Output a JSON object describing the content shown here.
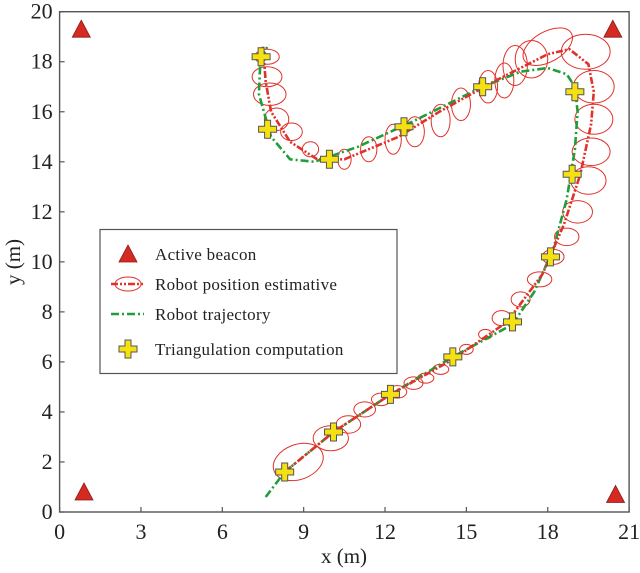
{
  "chart_data": {
    "type": "scatter",
    "xlabel": "x (m)",
    "ylabel": "y (m)",
    "xlim": [
      0,
      21
    ],
    "ylim": [
      0,
      20
    ],
    "xticks": [
      0,
      3,
      6,
      9,
      12,
      15,
      18,
      21
    ],
    "yticks": [
      0,
      2,
      4,
      6,
      8,
      10,
      12,
      14,
      16,
      18,
      20
    ],
    "grid": false,
    "legend_position": "center-left",
    "colors": {
      "beacon": "#d42a22",
      "estimate": "#e0312a",
      "trajectory": "#1f9e3a",
      "triangulation": "#f5e012"
    },
    "legend": [
      {
        "key": "beacon",
        "label": "Active beacon"
      },
      {
        "key": "estimate",
        "label": "Robot position estimative"
      },
      {
        "key": "trajectory",
        "label": "Robot trajectory"
      },
      {
        "key": "triangulation",
        "label": "Triangulation computation"
      }
    ],
    "beacons": [
      [
        0.8,
        19.3
      ],
      [
        20.4,
        19.3
      ],
      [
        0.9,
        0.8
      ],
      [
        20.5,
        0.7
      ]
    ],
    "trajectory": [
      [
        7.6,
        0.6
      ],
      [
        8.3,
        1.6
      ],
      [
        10.1,
        3.2
      ],
      [
        12.2,
        4.7
      ],
      [
        14.5,
        6.2
      ],
      [
        16.7,
        7.5
      ],
      [
        17.5,
        8.8
      ],
      [
        18.2,
        10.5
      ],
      [
        18.7,
        12.5
      ],
      [
        19.0,
        14.5
      ],
      [
        19.1,
        16.0
      ],
      [
        19.0,
        17.0
      ],
      [
        18.7,
        17.5
      ],
      [
        18.0,
        17.75
      ],
      [
        17.0,
        17.6
      ],
      [
        15.6,
        17.0
      ],
      [
        13.0,
        15.6
      ],
      [
        11.0,
        14.6
      ],
      [
        9.4,
        14.0
      ],
      [
        8.5,
        14.1
      ],
      [
        7.8,
        15.0
      ],
      [
        7.35,
        16.7
      ],
      [
        7.4,
        18.0
      ],
      [
        7.7,
        18.7
      ]
    ],
    "estimate": [
      [
        8.3,
        1.6
      ],
      [
        10.1,
        3.2
      ],
      [
        12.2,
        4.7
      ],
      [
        14.5,
        6.1
      ],
      [
        16.5,
        7.6
      ],
      [
        17.8,
        9.5
      ],
      [
        18.6,
        11.5
      ],
      [
        19.2,
        13.5
      ],
      [
        19.6,
        15.5
      ],
      [
        19.7,
        16.8
      ],
      [
        19.5,
        17.9
      ],
      [
        18.8,
        18.5
      ],
      [
        18.0,
        18.3
      ],
      [
        16.0,
        17.2
      ],
      [
        14.0,
        16.0
      ],
      [
        12.5,
        15.0
      ],
      [
        10.5,
        14.1
      ],
      [
        9.5,
        14.1
      ],
      [
        8.5,
        14.8
      ],
      [
        7.8,
        16.0
      ],
      [
        7.6,
        17.2
      ],
      [
        7.5,
        18.6
      ]
    ],
    "uncertainty_ellipses": [
      {
        "cx": 8.8,
        "cy": 2.0,
        "rx": 0.95,
        "ry": 0.7,
        "angle": 20
      },
      {
        "cx": 10.0,
        "cy": 2.95,
        "rx": 0.65,
        "ry": 0.5,
        "angle": 0
      },
      {
        "cx": 10.65,
        "cy": 3.5,
        "rx": 0.45,
        "ry": 0.35,
        "angle": 0
      },
      {
        "cx": 11.25,
        "cy": 4.1,
        "rx": 0.4,
        "ry": 0.3,
        "angle": 0
      },
      {
        "cx": 11.85,
        "cy": 4.5,
        "rx": 0.35,
        "ry": 0.25,
        "angle": 0
      },
      {
        "cx": 12.45,
        "cy": 4.8,
        "rx": 0.35,
        "ry": 0.25,
        "angle": 0
      },
      {
        "cx": 13.05,
        "cy": 5.15,
        "rx": 0.35,
        "ry": 0.25,
        "angle": 0
      },
      {
        "cx": 13.5,
        "cy": 5.35,
        "rx": 0.3,
        "ry": 0.2,
        "angle": 0
      },
      {
        "cx": 14.05,
        "cy": 5.7,
        "rx": 0.3,
        "ry": 0.2,
        "angle": 0
      },
      {
        "cx": 15.0,
        "cy": 6.5,
        "rx": 0.25,
        "ry": 0.2,
        "angle": 0
      },
      {
        "cx": 15.7,
        "cy": 7.1,
        "rx": 0.25,
        "ry": 0.2,
        "angle": 0
      },
      {
        "cx": 16.3,
        "cy": 7.75,
        "rx": 0.35,
        "ry": 0.3,
        "angle": 0
      },
      {
        "cx": 17.0,
        "cy": 8.5,
        "rx": 0.35,
        "ry": 0.3,
        "angle": 0
      },
      {
        "cx": 17.7,
        "cy": 9.3,
        "rx": 0.45,
        "ry": 0.3,
        "angle": 0
      },
      {
        "cx": 18.2,
        "cy": 10.2,
        "rx": 0.4,
        "ry": 0.3,
        "angle": 0
      },
      {
        "cx": 18.7,
        "cy": 11.0,
        "rx": 0.45,
        "ry": 0.35,
        "angle": 0
      },
      {
        "cx": 19.1,
        "cy": 12.0,
        "rx": 0.55,
        "ry": 0.45,
        "angle": 0
      },
      {
        "cx": 19.5,
        "cy": 13.25,
        "rx": 0.65,
        "ry": 0.55,
        "angle": 0
      },
      {
        "cx": 19.6,
        "cy": 14.4,
        "rx": 0.7,
        "ry": 0.55,
        "angle": 0
      },
      {
        "cx": 19.7,
        "cy": 15.7,
        "rx": 0.7,
        "ry": 0.6,
        "angle": 0
      },
      {
        "cx": 19.7,
        "cy": 17.0,
        "rx": 0.75,
        "ry": 0.65,
        "angle": 0
      },
      {
        "cx": 19.4,
        "cy": 18.4,
        "rx": 0.9,
        "ry": 0.7,
        "angle": 0
      },
      {
        "cx": 18.0,
        "cy": 18.6,
        "rx": 1.0,
        "ry": 0.6,
        "angle": 30
      },
      {
        "cx": 17.4,
        "cy": 18.1,
        "rx": 0.6,
        "ry": 0.75,
        "angle": 0
      },
      {
        "cx": 16.8,
        "cy": 17.85,
        "rx": 0.45,
        "ry": 0.8,
        "angle": 0
      },
      {
        "cx": 16.4,
        "cy": 17.25,
        "rx": 0.35,
        "ry": 0.7,
        "angle": 0
      },
      {
        "cx": 15.8,
        "cy": 17.0,
        "rx": 0.35,
        "ry": 0.65,
        "angle": 0
      },
      {
        "cx": 14.8,
        "cy": 16.3,
        "rx": 0.35,
        "ry": 0.65,
        "angle": 0
      },
      {
        "cx": 14.05,
        "cy": 15.65,
        "rx": 0.35,
        "ry": 0.65,
        "angle": 0
      },
      {
        "cx": 13.1,
        "cy": 15.2,
        "rx": 0.35,
        "ry": 0.6,
        "angle": 0
      },
      {
        "cx": 12.3,
        "cy": 14.9,
        "rx": 0.3,
        "ry": 0.6,
        "angle": 0
      },
      {
        "cx": 11.4,
        "cy": 14.5,
        "rx": 0.3,
        "ry": 0.5,
        "angle": 0
      },
      {
        "cx": 10.5,
        "cy": 14.1,
        "rx": 0.25,
        "ry": 0.4,
        "angle": 0
      },
      {
        "cx": 9.25,
        "cy": 14.5,
        "rx": 0.3,
        "ry": 0.3,
        "angle": 0
      },
      {
        "cx": 8.55,
        "cy": 15.2,
        "rx": 0.4,
        "ry": 0.35,
        "angle": 0
      },
      {
        "cx": 8.0,
        "cy": 15.7,
        "rx": 0.45,
        "ry": 0.45,
        "angle": 0
      },
      {
        "cx": 7.75,
        "cy": 16.7,
        "rx": 0.6,
        "ry": 0.45,
        "angle": 0
      },
      {
        "cx": 7.65,
        "cy": 17.4,
        "rx": 0.55,
        "ry": 0.4,
        "angle": 0
      },
      {
        "cx": 7.65,
        "cy": 18.2,
        "rx": 0.45,
        "ry": 0.3,
        "angle": 0
      }
    ],
    "triangulation": [
      [
        7.43,
        18.2
      ],
      [
        7.67,
        15.3
      ],
      [
        9.95,
        14.1
      ],
      [
        12.7,
        15.4
      ],
      [
        15.6,
        17.0
      ],
      [
        19.0,
        16.8
      ],
      [
        18.9,
        13.5
      ],
      [
        18.1,
        10.2
      ],
      [
        16.7,
        7.6
      ],
      [
        14.5,
        6.2
      ],
      [
        12.2,
        4.7
      ],
      [
        10.1,
        3.2
      ],
      [
        8.3,
        1.6
      ]
    ]
  }
}
